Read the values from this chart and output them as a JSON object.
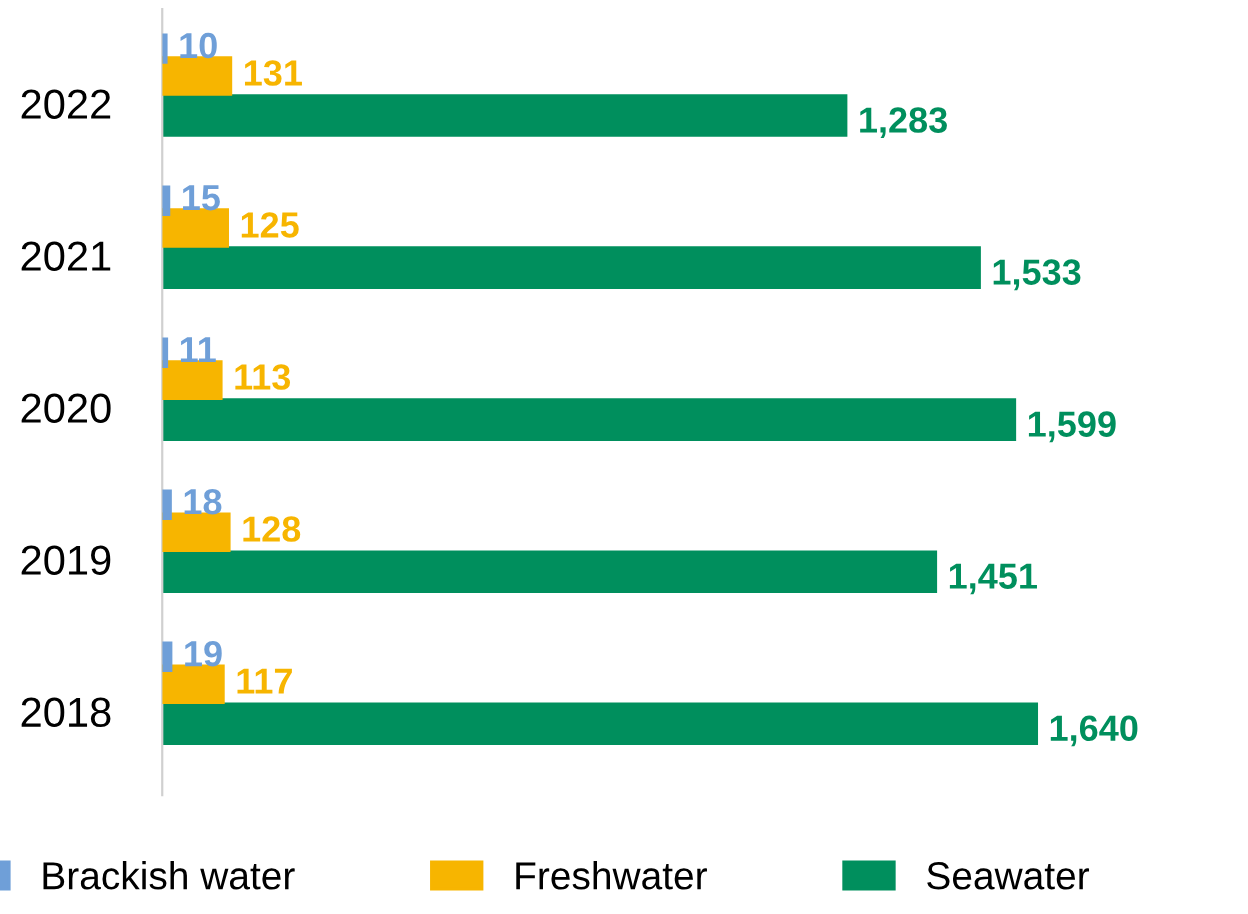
{
  "chart_data": {
    "type": "bar",
    "orientation": "horizontal",
    "categories": [
      "2022",
      "2021",
      "2020",
      "2019",
      "2018"
    ],
    "series": [
      {
        "name": "Brackish water",
        "color": "#6f9fd8",
        "values": [
          10,
          15,
          11,
          18,
          19
        ],
        "value_labels": [
          "10",
          "15",
          "11",
          "18",
          "19"
        ]
      },
      {
        "name": "Freshwater",
        "color": "#f7b500",
        "values": [
          131,
          125,
          113,
          128,
          117
        ],
        "value_labels": [
          "131",
          "125",
          "113",
          "128",
          "117"
        ]
      },
      {
        "name": "Seawater",
        "color": "#008f5d",
        "values": [
          1283,
          1533,
          1599,
          1451,
          1640
        ],
        "value_labels": [
          "1,283",
          "1,533",
          "1,599",
          "1,451",
          "1,640"
        ]
      }
    ],
    "legend": "bottom",
    "grid": false
  }
}
